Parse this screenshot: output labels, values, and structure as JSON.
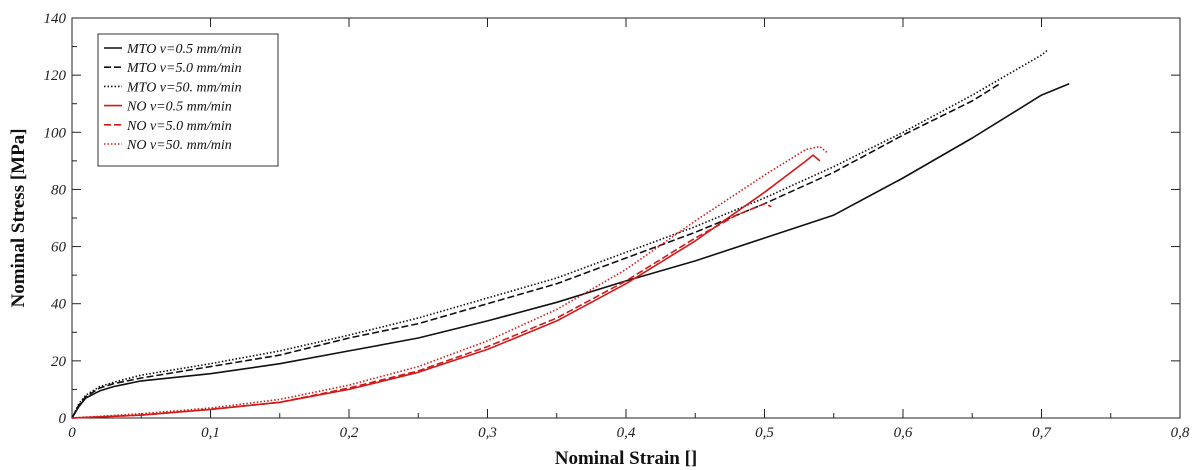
{
  "chart_data": {
    "type": "line",
    "title": "",
    "xlabel": "Nominal Strain []",
    "ylabel": "Nominal Stress [MPa]",
    "xlim": [
      0,
      0.8
    ],
    "ylim": [
      0,
      140
    ],
    "x_ticks": [
      0,
      0.1,
      0.2,
      0.3,
      0.4,
      0.5,
      0.6,
      0.7,
      0.8
    ],
    "x_tick_labels": [
      "0",
      "0,1",
      "0,2",
      "0,3",
      "0,4",
      "0,5",
      "0,6",
      "0,7",
      "0,8"
    ],
    "y_ticks": [
      0,
      20,
      40,
      60,
      80,
      100,
      120,
      140
    ],
    "y_tick_labels": [
      "0",
      "20",
      "40",
      "60",
      "80",
      "100",
      "120",
      "140"
    ],
    "grid": false,
    "legend_position": "top-left",
    "series": [
      {
        "name": "MTO v=0.5 mm/min",
        "color": "#111111",
        "dash": "solid",
        "points": [
          [
            0,
            0
          ],
          [
            0.005,
            4
          ],
          [
            0.01,
            7
          ],
          [
            0.02,
            9.5
          ],
          [
            0.03,
            11
          ],
          [
            0.05,
            13
          ],
          [
            0.1,
            15.5
          ],
          [
            0.15,
            19
          ],
          [
            0.2,
            23.5
          ],
          [
            0.25,
            28
          ],
          [
            0.3,
            34
          ],
          [
            0.35,
            40.5
          ],
          [
            0.4,
            48
          ],
          [
            0.45,
            55
          ],
          [
            0.5,
            63
          ],
          [
            0.55,
            71
          ],
          [
            0.6,
            84
          ],
          [
            0.65,
            98
          ],
          [
            0.7,
            113
          ],
          [
            0.72,
            117
          ]
        ]
      },
      {
        "name": "MTO v=5.0 mm/min",
        "color": "#111111",
        "dash": "dashed",
        "points": [
          [
            0,
            0
          ],
          [
            0.005,
            4.5
          ],
          [
            0.01,
            7.5
          ],
          [
            0.02,
            10.5
          ],
          [
            0.03,
            12
          ],
          [
            0.05,
            14
          ],
          [
            0.1,
            18
          ],
          [
            0.15,
            22
          ],
          [
            0.2,
            28
          ],
          [
            0.25,
            33
          ],
          [
            0.3,
            40
          ],
          [
            0.35,
            47
          ],
          [
            0.4,
            56
          ],
          [
            0.45,
            65
          ],
          [
            0.5,
            75
          ],
          [
            0.55,
            86
          ],
          [
            0.6,
            99
          ],
          [
            0.65,
            111
          ],
          [
            0.67,
            117
          ]
        ]
      },
      {
        "name": "MTO v=50. mm/min",
        "color": "#111111",
        "dash": "dotted",
        "points": [
          [
            0,
            0
          ],
          [
            0.005,
            5
          ],
          [
            0.01,
            8
          ],
          [
            0.02,
            11
          ],
          [
            0.03,
            12.5
          ],
          [
            0.05,
            15
          ],
          [
            0.1,
            19
          ],
          [
            0.15,
            23.5
          ],
          [
            0.2,
            29
          ],
          [
            0.25,
            35
          ],
          [
            0.3,
            42
          ],
          [
            0.35,
            49
          ],
          [
            0.4,
            58
          ],
          [
            0.45,
            67
          ],
          [
            0.5,
            77
          ],
          [
            0.55,
            88
          ],
          [
            0.6,
            100
          ],
          [
            0.65,
            113
          ],
          [
            0.7,
            127
          ],
          [
            0.705,
            129
          ]
        ]
      },
      {
        "name": "NO v=0.5 mm/min",
        "color": "#d11a1a",
        "dash": "solid",
        "points": [
          [
            0,
            0
          ],
          [
            0.05,
            1
          ],
          [
            0.1,
            3
          ],
          [
            0.15,
            5.5
          ],
          [
            0.2,
            10
          ],
          [
            0.25,
            16
          ],
          [
            0.3,
            24
          ],
          [
            0.35,
            34
          ],
          [
            0.4,
            47
          ],
          [
            0.45,
            62
          ],
          [
            0.5,
            79
          ],
          [
            0.53,
            90
          ],
          [
            0.535,
            92
          ],
          [
            0.54,
            90
          ]
        ]
      },
      {
        "name": "NO v=5.0 mm/min",
        "color": "#d11a1a",
        "dash": "dashed",
        "points": [
          [
            0,
            0
          ],
          [
            0.05,
            1
          ],
          [
            0.1,
            3
          ],
          [
            0.15,
            5.5
          ],
          [
            0.2,
            10.5
          ],
          [
            0.25,
            16.5
          ],
          [
            0.3,
            25
          ],
          [
            0.35,
            35
          ],
          [
            0.4,
            48
          ],
          [
            0.45,
            63
          ],
          [
            0.48,
            71
          ],
          [
            0.5,
            75
          ],
          [
            0.505,
            74
          ]
        ]
      },
      {
        "name": "NO v=50. mm/min",
        "color": "#d11a1a",
        "dash": "dotted",
        "points": [
          [
            0,
            0
          ],
          [
            0.05,
            1.5
          ],
          [
            0.1,
            3.5
          ],
          [
            0.15,
            6.5
          ],
          [
            0.2,
            11.5
          ],
          [
            0.25,
            18
          ],
          [
            0.3,
            27
          ],
          [
            0.35,
            38
          ],
          [
            0.4,
            52
          ],
          [
            0.45,
            69
          ],
          [
            0.5,
            85
          ],
          [
            0.53,
            94
          ],
          [
            0.54,
            95
          ],
          [
            0.545,
            93
          ]
        ]
      }
    ]
  }
}
